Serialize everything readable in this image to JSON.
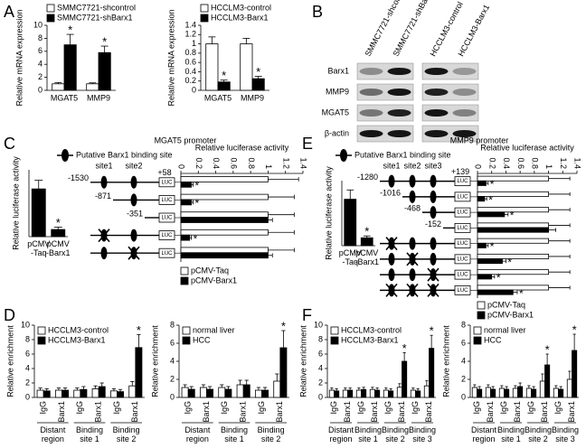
{
  "panel_labels": [
    "A",
    "B",
    "C",
    "D",
    "E",
    "F"
  ],
  "blot": {
    "lanes": [
      "SMMC7721-shcontrol",
      "SMMC7721-shBarx1",
      "HCCLM3-control",
      "HCCLM3-Barx1"
    ],
    "rows": [
      "Barx1",
      "MMP9",
      "MGAT5",
      "β-actin"
    ]
  },
  "promoters": [
    {
      "title": "MGAT5 promoter",
      "legend": "Putative Barx1 binding site",
      "sites": [
        "site1",
        "site2"
      ],
      "positions": [
        "-1530",
        "-871",
        "-351"
      ],
      "end": "+58",
      "reporter": "LUC"
    },
    {
      "title": "MMP9 promoter",
      "legend": "Putative Barx1 binding site",
      "sites": [
        "site1",
        "site2",
        "site3"
      ],
      "positions": [
        "-1280",
        "-1016",
        "-468",
        "-152"
      ],
      "end": "+139",
      "reporter": "LUC"
    }
  ],
  "chart_data": [
    {
      "type": "bar",
      "ylabel": "Relative mRNA expression",
      "categories": [
        "MGAT5",
        "MMP9"
      ],
      "series": [
        {
          "name": "SMMC7721-shcontrol",
          "color": "#ffffff",
          "values": [
            1,
            1
          ],
          "errors": [
            0.2,
            0.15
          ]
        },
        {
          "name": "SMMC7721-shBarx1",
          "color": "#000000",
          "values": [
            7,
            5.8
          ],
          "errors": [
            1.6,
            1.0
          ],
          "significance": [
            "*",
            "*"
          ]
        }
      ],
      "ylim": [
        0,
        10
      ],
      "yticks": [
        0,
        2,
        4,
        6,
        8,
        10
      ]
    },
    {
      "type": "bar",
      "ylabel": "Relative mRNA expression",
      "categories": [
        "MGAT5",
        "MMP9"
      ],
      "series": [
        {
          "name": "HCCLM3-control",
          "color": "#ffffff",
          "values": [
            1.0,
            1.0
          ],
          "errors": [
            0.15,
            0.12
          ]
        },
        {
          "name": "HCCLM3-Barx1",
          "color": "#000000",
          "values": [
            0.18,
            0.25
          ],
          "errors": [
            0.04,
            0.05
          ],
          "significance": [
            "*",
            "*"
          ]
        }
      ],
      "ylim": [
        0,
        1.4
      ],
      "yticks": [
        0,
        0.2,
        0.4,
        0.6,
        0.8,
        1,
        1.2,
        1.4
      ]
    },
    {
      "type": "bar",
      "ylabel": "Relative luciferase activity",
      "categories": [
        "pCMV -Taq",
        "pCMV -Barx1"
      ],
      "values": [
        1.0,
        0.15
      ],
      "errors": [
        0.18,
        0.05
      ],
      "significance": [
        null,
        "*"
      ],
      "color": "#000000",
      "ylim": [
        0,
        1.4
      ]
    },
    {
      "type": "hbar",
      "xlabel": "Relative luciferase activity",
      "xlim": [
        0,
        1.4
      ],
      "xticks": [
        0,
        0.2,
        0.4,
        0.6,
        0.8,
        1,
        1.2,
        1.4
      ],
      "series": [
        {
          "name": "pCMV-Taq",
          "color": "#ffffff",
          "values": [
            1,
            1,
            1,
            1,
            1
          ],
          "errors": [
            0.35,
            0.3,
            0.3,
            0.3,
            0.3
          ]
        },
        {
          "name": "pCMV-Barx1",
          "color": "#000000",
          "values": [
            0.12,
            0.12,
            1.0,
            0.1,
            1.0
          ],
          "errors": [
            0.02,
            0.02,
            0.05,
            0.02,
            0.05
          ],
          "significance": [
            "*",
            "*",
            null,
            "*",
            null
          ]
        }
      ]
    },
    {
      "type": "bar",
      "ylabel": "Relative luciferase activity",
      "categories": [
        "pCMV -Taq",
        "pCMV -Barx1"
      ],
      "values": [
        1.0,
        0.17
      ],
      "errors": [
        0.2,
        0.04
      ],
      "significance": [
        null,
        "*"
      ],
      "color": "#000000",
      "ylim": [
        0,
        1.4
      ]
    },
    {
      "type": "hbar",
      "xlabel": "Relative luciferase activity",
      "xlim": [
        0,
        1.4
      ],
      "xticks": [
        0,
        0.2,
        0.4,
        0.6,
        0.8,
        1,
        1.2,
        1.4
      ],
      "series": [
        {
          "name": "pCMV-Taq",
          "color": "#ffffff",
          "values": [
            1,
            1,
            1,
            1,
            1,
            1,
            1,
            1
          ],
          "errors": [
            0.3,
            0.3,
            0.3,
            0.3,
            0.3,
            0.3,
            0.3,
            0.3
          ]
        },
        {
          "name": "pCMV-Barx1",
          "color": "#000000",
          "values": [
            0.12,
            0.1,
            0.38,
            1.0,
            0.12,
            0.35,
            0.2,
            0.5
          ],
          "errors": [
            0.03,
            0.03,
            0.05,
            0.1,
            0.03,
            0.05,
            0.04,
            0.06
          ],
          "significance": [
            "*",
            "*",
            "*",
            null,
            "*",
            "*",
            "*",
            "*"
          ]
        }
      ]
    },
    {
      "type": "bar",
      "ylabel": "Relative enrichment",
      "categories": [
        "IgG",
        "Barx1",
        "IgG",
        "Barx1",
        "IgG",
        "Barx1"
      ],
      "groups": [
        "Distant region",
        "Binding site 1",
        "Binding site 2"
      ],
      "series": [
        {
          "name": "HCCLM3-control",
          "color": "#ffffff",
          "values": [
            1.0,
            1.0,
            1.0,
            1.2,
            0.9,
            1.6
          ],
          "errors": [
            0.3,
            0.3,
            0.3,
            0.4,
            0.3,
            0.6
          ]
        },
        {
          "name": "HCCLM3-Barx1",
          "color": "#000000",
          "values": [
            0.9,
            1.0,
            1.1,
            1.5,
            0.8,
            6.9
          ],
          "errors": [
            0.3,
            0.3,
            0.4,
            0.5,
            0.3,
            1.8
          ],
          "significance": [
            null,
            null,
            null,
            null,
            null,
            "*"
          ]
        }
      ],
      "ylim": [
        0,
        10
      ],
      "yticks": [
        0,
        2,
        4,
        6,
        8,
        10
      ]
    },
    {
      "type": "bar",
      "ylabel": "Relative enrichment",
      "categories": [
        "IgG",
        "Barx1",
        "IgG",
        "Barx1",
        "IgG",
        "Barx1"
      ],
      "groups": [
        "Distant region",
        "Binding site 1",
        "Binding site 2"
      ],
      "series": [
        {
          "name": "normal liver",
          "color": "#ffffff",
          "values": [
            1.1,
            1.1,
            1.1,
            1.4,
            0.8,
            1.8
          ],
          "errors": [
            0.3,
            0.3,
            0.3,
            0.5,
            0.3,
            0.8
          ]
        },
        {
          "name": "HCC",
          "color": "#000000",
          "values": [
            0.9,
            0.9,
            0.9,
            1.4,
            0.8,
            5.5
          ],
          "errors": [
            0.3,
            0.3,
            0.3,
            0.5,
            0.3,
            1.9
          ],
          "significance": [
            null,
            null,
            null,
            null,
            null,
            "*"
          ]
        }
      ],
      "ylim": [
        0,
        8
      ],
      "yticks": [
        0,
        2,
        4,
        6,
        8
      ]
    },
    {
      "type": "bar",
      "ylabel": "Relative enrichment",
      "categories": [
        "IgG",
        "Barx1",
        "IgG",
        "Barx1",
        "IgG",
        "Barx1",
        "IgG",
        "Barx1"
      ],
      "groups": [
        "Distant region",
        "Binding site 1",
        "Binding site 2",
        "Binding site 3"
      ],
      "series": [
        {
          "name": "HCCLM3-control",
          "color": "#ffffff",
          "values": [
            1.0,
            1.0,
            1.0,
            1.1,
            1.0,
            1.4,
            1.0,
            1.6
          ],
          "errors": [
            0.3,
            0.3,
            0.3,
            0.3,
            0.3,
            0.5,
            0.3,
            0.7
          ]
        },
        {
          "name": "HCCLM3-Barx1",
          "color": "#000000",
          "values": [
            0.9,
            1.0,
            1.1,
            1.0,
            0.9,
            5.0,
            0.9,
            6.8
          ],
          "errors": [
            0.3,
            0.3,
            0.3,
            0.3,
            0.3,
            1.2,
            0.3,
            1.8
          ],
          "significance": [
            null,
            null,
            null,
            null,
            null,
            "*",
            null,
            "*"
          ]
        }
      ],
      "ylim": [
        0,
        10
      ],
      "yticks": [
        0,
        2,
        4,
        6,
        8,
        10
      ]
    },
    {
      "type": "bar",
      "ylabel": "Relative enrichment",
      "categories": [
        "IgG",
        "Barx1",
        "IgG",
        "Barx1",
        "IgG",
        "Barx1",
        "IgG",
        "Barx1"
      ],
      "groups": [
        "Distant region",
        "Binding site 1",
        "Binding site 2",
        "Binding site 3"
      ],
      "series": [
        {
          "name": "normal liver",
          "color": "#ffffff",
          "values": [
            1.1,
            1.1,
            1.0,
            1.0,
            1.0,
            1.8,
            1.0,
            2.0
          ],
          "errors": [
            0.3,
            0.3,
            0.3,
            0.3,
            0.3,
            0.8,
            0.3,
            0.9
          ]
        },
        {
          "name": "HCC",
          "color": "#000000",
          "values": [
            0.9,
            0.9,
            0.9,
            1.2,
            0.9,
            3.6,
            0.9,
            5.2
          ],
          "errors": [
            0.3,
            0.3,
            0.3,
            0.4,
            0.3,
            1.2,
            0.3,
            1.8
          ],
          "significance": [
            null,
            null,
            null,
            null,
            null,
            "*",
            null,
            "*"
          ]
        }
      ],
      "ylim": [
        0,
        8
      ],
      "yticks": [
        0,
        2,
        4,
        6,
        8
      ]
    }
  ]
}
